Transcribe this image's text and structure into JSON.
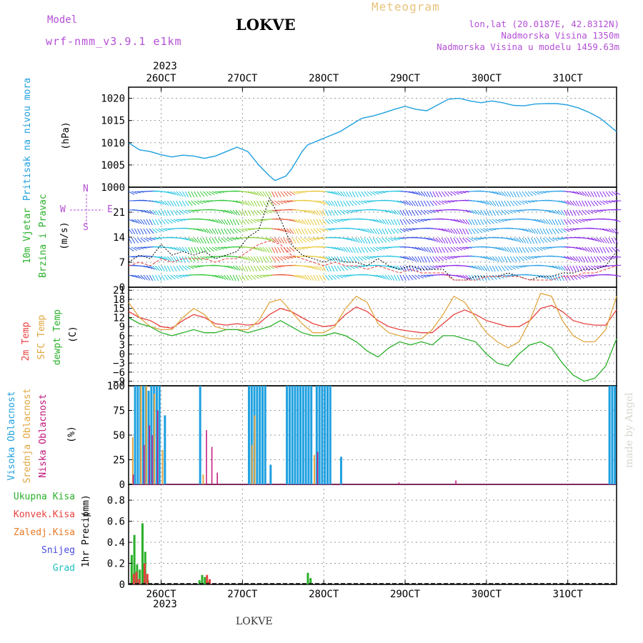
{
  "header": {
    "model_label": "Model",
    "model_version": "wrf-nmm_v3.9.1 e1km",
    "station": "LOKVE",
    "meteogram_label": "Meteogram",
    "lonlat": "lon,lat (20.0187E, 42.8312N)",
    "elevation": "Nadmorska Visina 1350m",
    "model_elevation": "Nadmorska Visina u modelu 1459.63m"
  },
  "footer": {
    "station": "LOKVE",
    "credit": "made by Angel"
  },
  "time_axis": {
    "year": "2023",
    "days": [
      "26OCT",
      "27OCT",
      "28OCT",
      "29OCT",
      "30OCT",
      "31OCT"
    ]
  },
  "colors": {
    "pressure": "#1fa0e0",
    "temp2m": "#e8413f",
    "sfc_temp": "#e0a640",
    "dewpoint": "#2ab02a",
    "high_cloud": "#1fa0e0",
    "mid_cloud": "#e0a640",
    "low_cloud": "#c0147a",
    "total_precip": "#2ab02a",
    "conv_precip": "#e8413f",
    "freezing": "#e87a25",
    "snow": "#4b4be0",
    "hail": "#20c0c0"
  },
  "chart_data": [
    {
      "type": "line",
      "panel": "pressure",
      "ylabel_title": "Pritisak na nivou mora",
      "ylabel_unit": "(hPa)",
      "yticks": [
        "1000",
        "1005",
        "1010",
        "1015",
        "1020"
      ],
      "ylim": [
        1000,
        1022.5
      ],
      "grid": true,
      "x": [
        0,
        4,
        8,
        12,
        16,
        20,
        24,
        28,
        32,
        36,
        40,
        44,
        48,
        52,
        54,
        58,
        60,
        62,
        64,
        66,
        70,
        74,
        78,
        82,
        86,
        90,
        94,
        98,
        102,
        106,
        110,
        114,
        118,
        122,
        126,
        130,
        134,
        138,
        142,
        146,
        150,
        154,
        158,
        162,
        166,
        170,
        174,
        178,
        180
      ],
      "series": [
        {
          "name": "Pritisak",
          "values": [
            1010,
            1008.4,
            1008,
            1007.3,
            1006.8,
            1007.2,
            1007,
            1006.5,
            1007,
            1008,
            1009,
            1008,
            1005,
            1002.5,
            1001.5,
            1002.5,
            1004,
            1006,
            1008,
            1009.5,
            1010.5,
            1011.5,
            1012.5,
            1014,
            1015.5,
            1016,
            1016.7,
            1017.5,
            1018.2,
            1017.5,
            1017.2,
            1018.5,
            1019.8,
            1020,
            1019.4,
            1019,
            1019.4,
            1019,
            1018.4,
            1018.3,
            1018.7,
            1018.8,
            1018.8,
            1018.5,
            1017.8,
            1016.8,
            1015.5,
            1013.5,
            1012.5
          ]
        }
      ]
    },
    {
      "type": "line",
      "panel": "wind",
      "ylabel_title_1": "10m Vjetar",
      "ylabel_title_2": "Brzina i Pravac",
      "ylabel_unit": "(m/s)",
      "compass_n": "N",
      "compass_s": "S",
      "compass_e": "E",
      "compass_w": "W",
      "yticks": [
        "0",
        "7",
        "14",
        "21"
      ],
      "ylim": [
        0,
        28
      ],
      "grid": true,
      "x": [
        0,
        4,
        8,
        12,
        16,
        20,
        24,
        28,
        32,
        36,
        40,
        44,
        48,
        52,
        56,
        60,
        64,
        68,
        72,
        76,
        80,
        84,
        88,
        92,
        96,
        100,
        104,
        108,
        112,
        116,
        120,
        124,
        128,
        132,
        136,
        140,
        144,
        148,
        152,
        156,
        160,
        164,
        168,
        172,
        176,
        180
      ],
      "series": [
        {
          "name": "Brzina",
          "values": [
            7,
            9,
            8,
            12,
            9,
            10,
            9,
            10,
            8,
            9,
            10,
            14,
            16,
            25,
            19,
            12,
            9,
            8,
            7,
            8,
            7,
            7,
            6,
            8,
            6,
            5,
            6,
            5,
            5,
            5,
            2,
            2,
            3,
            3,
            3,
            4,
            3,
            2,
            3,
            3,
            4,
            4,
            5,
            5,
            6,
            10
          ]
        },
        {
          "name": "Udari",
          "values": [
            6,
            7,
            6,
            8,
            7,
            8,
            8,
            8,
            7,
            8,
            8,
            10,
            12,
            13,
            12,
            9,
            8,
            7,
            6,
            7,
            6,
            6,
            5,
            6,
            5,
            4,
            5,
            4,
            4,
            4,
            2,
            2,
            2,
            3,
            3,
            3,
            3,
            2,
            2,
            2,
            3,
            3,
            4,
            4,
            5,
            6
          ]
        }
      ]
    },
    {
      "type": "line",
      "panel": "temperature",
      "ylabel_title_1": "2m Temp",
      "ylabel_title_2": "SFC Temp",
      "ylabel_title_3": "dewpt Temp",
      "ylabel_unit": "(C)",
      "yticks": [
        "21",
        "18",
        "15",
        "12",
        "9",
        "6",
        "3",
        "0",
        "−3",
        "−6",
        "−9"
      ],
      "ylim": [
        -10.5,
        22
      ],
      "grid": true,
      "x": [
        0,
        4,
        8,
        12,
        16,
        20,
        24,
        28,
        32,
        36,
        40,
        44,
        48,
        52,
        56,
        60,
        64,
        68,
        72,
        76,
        80,
        84,
        88,
        92,
        96,
        100,
        104,
        108,
        112,
        116,
        120,
        124,
        128,
        132,
        136,
        140,
        144,
        148,
        152,
        156,
        160,
        164,
        168,
        172,
        176,
        180
      ],
      "series": [
        {
          "name": "2m Temp",
          "values": [
            14,
            12,
            11,
            9,
            8.5,
            11,
            13,
            12,
            10,
            9.5,
            10,
            9.5,
            10,
            13,
            15,
            14,
            12,
            10,
            9,
            9.5,
            13,
            15.5,
            14,
            11,
            9,
            8,
            7.5,
            7,
            7,
            10,
            13,
            14.5,
            13,
            11,
            10,
            9,
            9,
            11,
            15,
            16,
            14,
            11,
            10,
            9.5,
            9.5,
            14.5
          ]
        },
        {
          "name": "SFC Temp",
          "values": [
            17,
            12,
            9,
            8,
            8,
            12,
            15,
            13,
            9,
            8,
            8,
            8,
            11,
            17,
            18,
            14,
            10,
            7,
            7,
            9,
            15,
            19,
            17,
            10,
            7,
            6,
            5,
            5,
            8,
            13,
            19,
            17,
            12,
            7,
            4,
            2,
            4,
            11,
            20,
            19,
            11,
            6,
            4,
            4,
            8,
            19
          ]
        },
        {
          "name": "dewpt Temp",
          "values": [
            12,
            10,
            9,
            7,
            6,
            7,
            8,
            7,
            7,
            8,
            8,
            7,
            8,
            9,
            11,
            9,
            7,
            6,
            6,
            7,
            6,
            4,
            1,
            -1,
            2,
            4,
            3,
            4,
            3,
            6,
            6,
            5,
            4,
            0,
            -3,
            -4,
            0,
            3,
            4,
            2,
            -3,
            -7,
            -9,
            -8,
            -4,
            5
          ]
        }
      ]
    },
    {
      "type": "bar",
      "panel": "clouds",
      "ylabel_title_1": "Visoka Oblacnost",
      "ylabel_title_2": "Srednja Oblacnost",
      "ylabel_title_3": "Niska Oblacnost",
      "ylabel_unit": "(%)",
      "yticks": [
        "0",
        "25",
        "50",
        "75",
        "100"
      ],
      "ylim": [
        0,
        100
      ],
      "grid": true,
      "series": [
        {
          "name": "Visoka Oblacnost",
          "x": [
            2,
            3,
            4,
            5,
            6,
            7,
            8,
            9,
            10,
            11,
            13,
            26,
            44,
            45,
            46,
            47,
            48,
            49,
            50,
            52,
            58,
            59,
            60,
            61,
            62,
            63,
            64,
            65,
            66,
            67,
            69,
            70,
            71,
            72,
            73,
            74,
            78,
            177,
            178,
            179
          ],
          "values": [
            100,
            100,
            100,
            100,
            100,
            95,
            100,
            100,
            100,
            100,
            70,
            100,
            100,
            100,
            100,
            100,
            100,
            100,
            100,
            20,
            100,
            100,
            100,
            100,
            100,
            100,
            100,
            100,
            100,
            100,
            100,
            100,
            100,
            100,
            100,
            100,
            28,
            100,
            100,
            100
          ]
        },
        {
          "name": "Srednja Oblacnost",
          "x": [
            1,
            4,
            6,
            9,
            12,
            27,
            45,
            46,
            68
          ],
          "values": [
            48,
            100,
            100,
            92,
            35,
            10,
            40,
            70,
            30
          ]
        },
        {
          "name": "Niska Oblacnost",
          "x": [
            1,
            5,
            7,
            8,
            10,
            28,
            30,
            32,
            69,
            99,
            120
          ],
          "values": [
            10,
            40,
            60,
            50,
            75,
            55,
            38,
            12,
            33,
            2,
            4
          ]
        }
      ]
    },
    {
      "type": "bar",
      "panel": "precipitation",
      "ylabel_title": "1hr Precip",
      "ylabel_unit": "(mm)",
      "legend": [
        "Ukupna Kisa",
        "Konvek.Kisa",
        "Zaledj.Kisa",
        "Snijeg",
        "Grad"
      ],
      "yticks": [
        "0",
        "0.2",
        "0.4",
        "0.6",
        "0.8"
      ],
      "ylim": [
        0,
        0.95
      ],
      "grid": true,
      "series": [
        {
          "name": "Ukupna Kisa",
          "x": [
            1,
            2,
            3,
            4,
            5,
            6,
            7,
            26,
            27,
            28,
            29,
            66,
            67
          ],
          "values": [
            0.28,
            0.47,
            0.19,
            0.14,
            0.58,
            0.31,
            0.04,
            0.04,
            0.09,
            0.07,
            0.03,
            0.11,
            0.06
          ]
        },
        {
          "name": "Konvek.Kisa",
          "x": [
            1,
            2,
            3,
            5,
            6,
            28,
            29
          ],
          "values": [
            0.1,
            0.12,
            0.05,
            0.2,
            0.1,
            0.09,
            0.05
          ]
        }
      ]
    }
  ]
}
